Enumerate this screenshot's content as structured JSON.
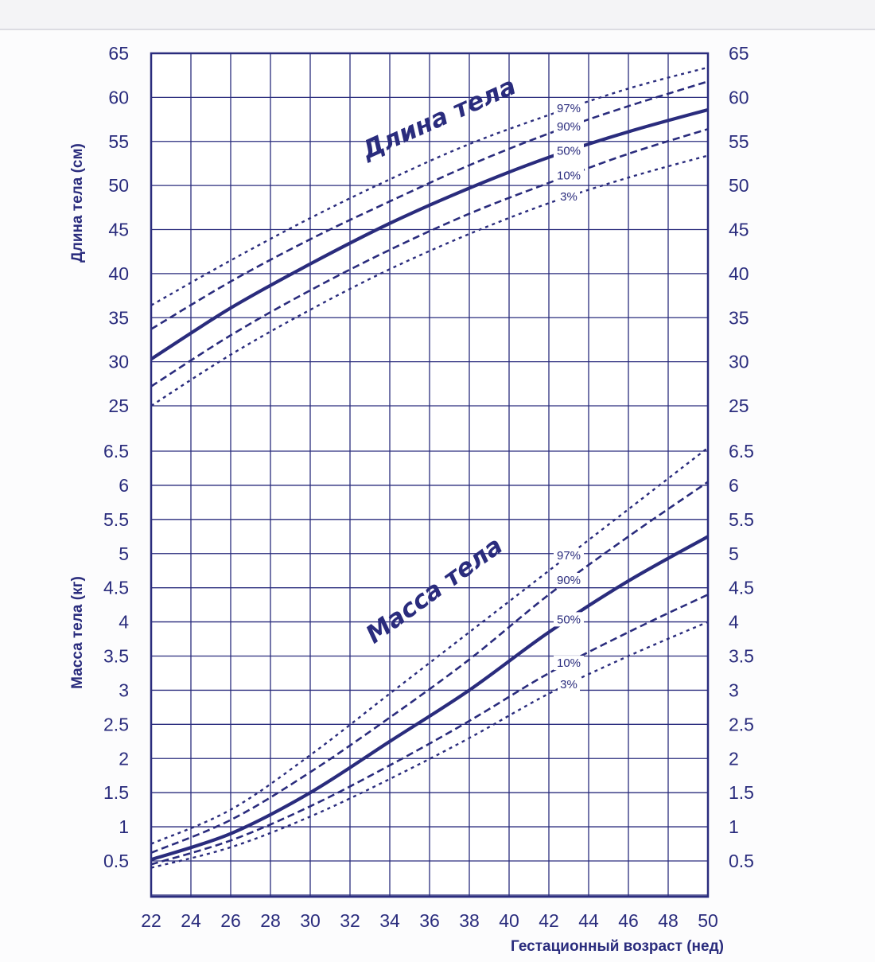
{
  "colors": {
    "ink": "#2a2c7d",
    "grid": "#2a2c7d",
    "background": "#fcfcfd"
  },
  "chart_data": [
    {
      "type": "line",
      "title": "Длина тела",
      "ylabel": "Длина тела (см)",
      "xlabel": "Гестационный возраст (нед)",
      "xlim": [
        22,
        50
      ],
      "ylim": [
        25,
        65
      ],
      "yticks": [
        "65",
        "60",
        "55",
        "50",
        "45",
        "40",
        "35",
        "30",
        "25"
      ],
      "grid": true,
      "series": [
        {
          "name": "97%",
          "style": "dotted",
          "x": [
            22,
            26,
            30,
            34,
            38,
            42,
            46,
            50
          ],
          "values": [
            36.4,
            41.5,
            46.3,
            50.7,
            54.7,
            58.0,
            61.0,
            63.4
          ]
        },
        {
          "name": "90%",
          "style": "dashed",
          "x": [
            22,
            26,
            30,
            34,
            38,
            42,
            46,
            50
          ],
          "values": [
            33.7,
            39.1,
            43.9,
            48.2,
            52.3,
            55.9,
            59.0,
            61.8
          ]
        },
        {
          "name": "50%",
          "style": "solid",
          "x": [
            22,
            26,
            30,
            34,
            38,
            42,
            46,
            50
          ],
          "values": [
            30.3,
            36.1,
            41.1,
            45.7,
            49.7,
            53.2,
            56.1,
            58.6
          ]
        },
        {
          "name": "10%",
          "style": "dashed",
          "x": [
            22,
            26,
            30,
            34,
            38,
            42,
            46,
            50
          ],
          "values": [
            27.2,
            33.0,
            38.1,
            42.7,
            46.8,
            50.3,
            53.6,
            56.4
          ]
        },
        {
          "name": "3%",
          "style": "dotted",
          "x": [
            22,
            26,
            30,
            34,
            38,
            42,
            46,
            50
          ],
          "values": [
            25.0,
            30.8,
            35.9,
            40.5,
            44.5,
            48.0,
            50.9,
            53.4
          ]
        }
      ]
    },
    {
      "type": "line",
      "title": "Масса тела",
      "ylabel": "Масса тела (кг)",
      "xlabel": "Гестационный возраст (нед)",
      "xlim": [
        22,
        50
      ],
      "ylim": [
        0,
        6.5
      ],
      "yticks": [
        "6.5",
        "6",
        "5.5",
        "5",
        "4.5",
        "4",
        "3.5",
        "3",
        "2.5",
        "2",
        "1.5",
        "1",
        "0.5"
      ],
      "grid": true,
      "series": [
        {
          "name": "97%",
          "style": "dotted",
          "x": [
            22,
            26,
            30,
            34,
            38,
            42,
            46,
            50
          ],
          "values": [
            0.75,
            1.25,
            2.05,
            2.95,
            3.85,
            4.75,
            5.65,
            6.55
          ]
        },
        {
          "name": "90%",
          "style": "dashed",
          "x": [
            22,
            26,
            30,
            34,
            38,
            42,
            46,
            50
          ],
          "values": [
            0.62,
            1.1,
            1.8,
            2.6,
            3.45,
            4.4,
            5.25,
            6.05
          ]
        },
        {
          "name": "50%",
          "style": "solid",
          "x": [
            22,
            26,
            30,
            34,
            38,
            42,
            46,
            50
          ],
          "values": [
            0.52,
            0.9,
            1.5,
            2.25,
            3.0,
            3.85,
            4.6,
            5.25
          ]
        },
        {
          "name": "10%",
          "style": "dashed",
          "x": [
            22,
            26,
            30,
            34,
            38,
            42,
            46,
            50
          ],
          "values": [
            0.45,
            0.8,
            1.3,
            1.9,
            2.55,
            3.25,
            3.85,
            4.4
          ]
        },
        {
          "name": "3%",
          "style": "dotted",
          "x": [
            22,
            26,
            30,
            34,
            38,
            42,
            46,
            50
          ],
          "values": [
            0.4,
            0.7,
            1.15,
            1.7,
            2.3,
            2.95,
            3.5,
            4.0
          ]
        }
      ]
    }
  ],
  "x_axis": {
    "ticks": [
      "22",
      "24",
      "26",
      "28",
      "30",
      "32",
      "34",
      "36",
      "38",
      "40",
      "42",
      "44",
      "46",
      "48",
      "50"
    ],
    "label": "Гестационный возраст (нед)"
  }
}
